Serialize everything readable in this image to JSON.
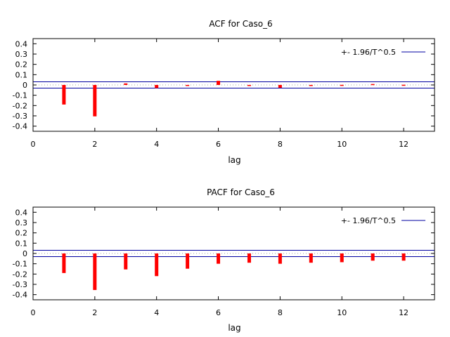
{
  "chart_data": [
    {
      "type": "bar",
      "title": "ACF for Caso_6",
      "xlabel": "lag",
      "ylabel": "",
      "xlim": [
        0,
        13
      ],
      "ylim": [
        -0.45,
        0.45
      ],
      "xticks": [
        0,
        2,
        4,
        6,
        8,
        10,
        12
      ],
      "yticks": [
        -0.4,
        -0.3,
        -0.2,
        -0.1,
        0,
        0.1,
        0.2,
        0.3,
        0.4
      ],
      "ytick_labels": [
        "-0.4",
        "-0.3",
        "-0.2",
        "-0.1",
        "0",
        "0.1",
        "0.2",
        "0.3",
        "0.4"
      ],
      "x": [
        1,
        2,
        3,
        4,
        5,
        6,
        7,
        8,
        9,
        10,
        11,
        12
      ],
      "values": [
        -0.19,
        -0.305,
        0.015,
        -0.03,
        -0.002,
        0.04,
        -0.006,
        -0.028,
        -0.005,
        0.001,
        0.009,
        0.002
      ],
      "band": 0.031,
      "legend": {
        "label": "+- 1.96/T^0.5",
        "position": "top-right"
      },
      "bar_color": "#ff0000",
      "band_color": "#0000a0"
    },
    {
      "type": "bar",
      "title": "PACF for Caso_6",
      "xlabel": "lag",
      "ylabel": "",
      "xlim": [
        0,
        13
      ],
      "ylim": [
        -0.45,
        0.45
      ],
      "xticks": [
        0,
        2,
        4,
        6,
        8,
        10,
        12
      ],
      "yticks": [
        -0.4,
        -0.3,
        -0.2,
        -0.1,
        0,
        0.1,
        0.2,
        0.3,
        0.4
      ],
      "ytick_labels": [
        "-0.4",
        "-0.3",
        "-0.2",
        "-0.1",
        "0",
        "0.1",
        "0.2",
        "0.3",
        "0.4"
      ],
      "x": [
        1,
        2,
        3,
        4,
        5,
        6,
        7,
        8,
        9,
        10,
        11,
        12
      ],
      "values": [
        -0.19,
        -0.355,
        -0.155,
        -0.22,
        -0.148,
        -0.1,
        -0.09,
        -0.1,
        -0.09,
        -0.085,
        -0.07,
        -0.07
      ],
      "band": 0.031,
      "legend": {
        "label": "+- 1.96/T^0.5",
        "position": "top-right"
      },
      "bar_color": "#ff0000",
      "band_color": "#0000a0"
    }
  ]
}
